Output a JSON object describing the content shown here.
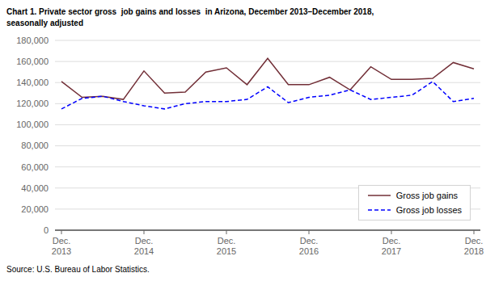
{
  "chart_data": {
    "type": "line",
    "title": "Chart 1. Private sector gross  job gains and losses  in Arizona, December 2013–December 2018,\nseasonally adjusted",
    "annotations": [
      "Source: U.S. Bureau of Labor Statistics."
    ],
    "categories": [
      "Dec.\n2013",
      null,
      null,
      null,
      "Dec.\n2014",
      null,
      null,
      null,
      "Dec.\n2015",
      null,
      null,
      null,
      "Dec.\n2016",
      null,
      null,
      null,
      "Dec.\n2017",
      null,
      null,
      null,
      "Dec.\n2018"
    ],
    "series": [
      {
        "name": "Gross job gains",
        "color": "#722F37",
        "line_style": "solid",
        "values": [
          141000,
          126000,
          127000,
          124000,
          151000,
          130000,
          131000,
          150000,
          154000,
          138000,
          163000,
          138000,
          138000,
          145000,
          133000,
          155000,
          143000,
          143000,
          144000,
          159000,
          153000
        ]
      },
      {
        "name": "Gross job losses",
        "color": "#0000FF",
        "line_style": "dashed",
        "values": [
          115000,
          125000,
          127000,
          122000,
          118000,
          115000,
          120000,
          122000,
          122000,
          124000,
          136000,
          121000,
          126000,
          128000,
          133000,
          124000,
          126000,
          128000,
          141000,
          122000,
          125000
        ]
      }
    ],
    "ylim": [
      0,
      180000
    ],
    "yticks": [
      0,
      {
        "value": 20000,
        "label": "20,000"
      },
      {
        "value": 40000,
        "label": "40,000"
      },
      {
        "value": 60000,
        "label": "60,000"
      },
      {
        "value": 80000,
        "label": "80,000"
      },
      {
        "value": 100000,
        "label": "100,000"
      },
      {
        "value": 120000,
        "label": "120,000"
      },
      {
        "value": 140000,
        "label": "140,000"
      },
      {
        "value": 160000,
        "label": "160,000"
      },
      {
        "value": 180000,
        "label": "180,000"
      }
    ],
    "grid": true,
    "legend": "lower right"
  }
}
